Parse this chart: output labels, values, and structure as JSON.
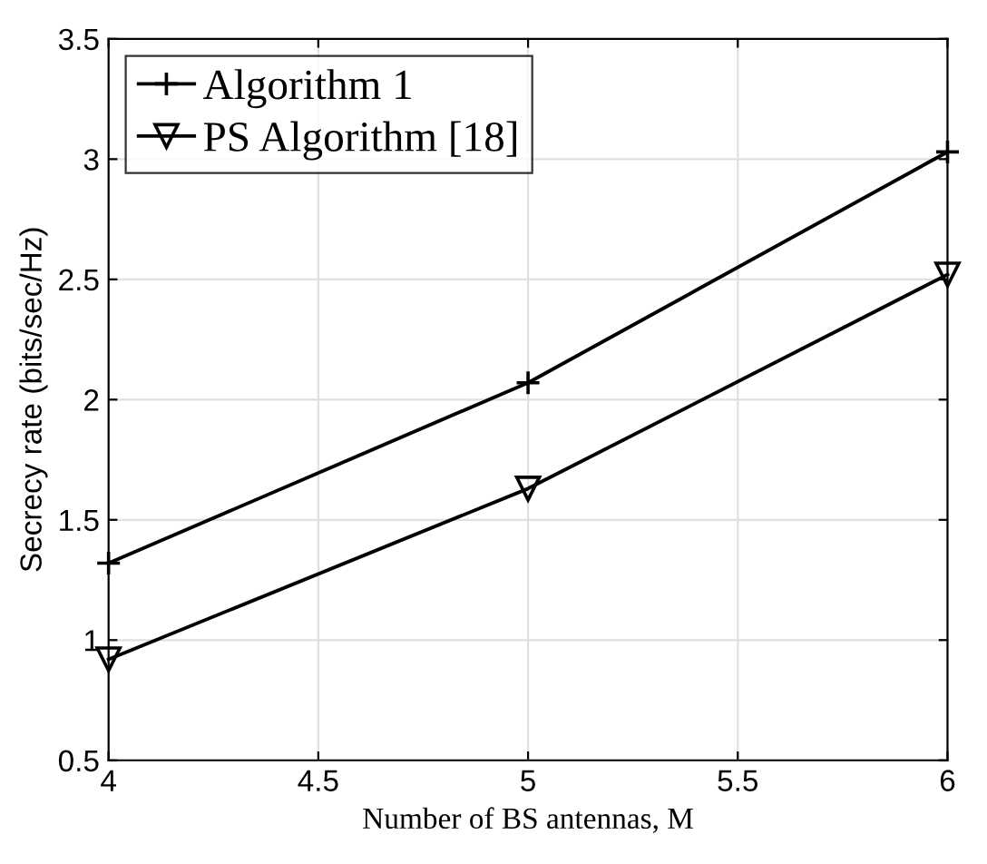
{
  "chart_data": {
    "type": "line",
    "xlabel": "Number of BS antennas, M",
    "ylabel": "Secrecy rate (bits/sec/Hz)",
    "x": [
      4,
      5,
      6
    ],
    "series": [
      {
        "name": "Algorithm 1",
        "color": "#000000",
        "marker": "cross",
        "values": [
          1.32,
          2.07,
          3.03
        ]
      },
      {
        "name": "PS Algorithm [18]",
        "color": "#000000",
        "marker": "triangle",
        "values": [
          0.92,
          1.63,
          2.52
        ]
      }
    ],
    "xlim": [
      4,
      6
    ],
    "xticks": [
      4,
      4.5,
      5,
      5.5,
      6
    ],
    "ylim": [
      0.5,
      3.5
    ],
    "yticks": [
      0.5,
      1,
      1.5,
      2,
      2.5,
      3,
      3.5
    ],
    "grid": true,
    "legend": "top left",
    "line_style": "solid"
  }
}
